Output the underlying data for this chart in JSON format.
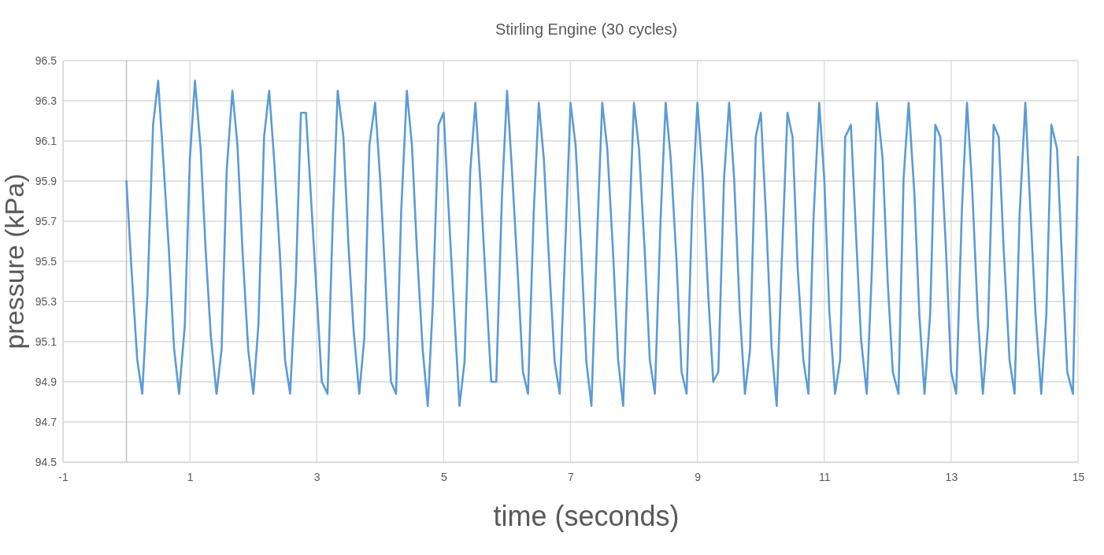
{
  "chart_data": {
    "type": "line",
    "title": "Stirling Engine (30 cycles)",
    "xlabel": "time (seconds)",
    "ylabel": "pressure (kPa)",
    "xlim": [
      -1,
      15
    ],
    "xticks": [
      -1,
      1,
      3,
      5,
      7,
      9,
      11,
      13,
      15
    ],
    "ylim": [
      94.5,
      96.5
    ],
    "yticks": [
      {
        "value": 94.5,
        "label": "94.5"
      },
      {
        "value": 94.7,
        "label": "94.7"
      },
      {
        "value": 94.9,
        "label": "94.9"
      },
      {
        "value": 95.1,
        "label": "95.1"
      },
      {
        "value": 95.3,
        "label": "95.3"
      },
      {
        "value": 95.5,
        "label": "95.5"
      },
      {
        "value": 95.7,
        "label": "95.7"
      },
      {
        "value": 95.9,
        "label": "95.9"
      },
      {
        "value": 96.1,
        "label": "96.1"
      },
      {
        "value": 96.3,
        "label": "96.3"
      },
      {
        "value": 96.5,
        "label": "96.5"
      }
    ],
    "grid": true,
    "marker": "none",
    "line_style": "solid",
    "x": [
      0,
      0.08,
      0.17,
      0.25,
      0.33,
      0.42,
      0.5,
      0.58,
      0.67,
      0.75,
      0.83,
      0.92,
      1,
      1.08,
      1.17,
      1.25,
      1.33,
      1.42,
      1.5,
      1.58,
      1.67,
      1.75,
      1.83,
      1.92,
      2,
      2.08,
      2.17,
      2.25,
      2.33,
      2.42,
      2.5,
      2.58,
      2.67,
      2.75,
      2.83,
      2.92,
      3,
      3.08,
      3.17,
      3.25,
      3.33,
      3.42,
      3.5,
      3.58,
      3.67,
      3.75,
      3.83,
      3.92,
      4,
      4.08,
      4.17,
      4.25,
      4.33,
      4.42,
      4.5,
      4.58,
      4.67,
      4.75,
      4.83,
      4.92,
      5,
      5.08,
      5.17,
      5.25,
      5.33,
      5.42,
      5.5,
      5.58,
      5.67,
      5.75,
      5.83,
      5.92,
      6,
      6.08,
      6.17,
      6.25,
      6.33,
      6.42,
      6.5,
      6.58,
      6.67,
      6.75,
      6.83,
      6.92,
      7,
      7.08,
      7.17,
      7.25,
      7.33,
      7.42,
      7.5,
      7.58,
      7.67,
      7.75,
      7.83,
      7.92,
      8,
      8.08,
      8.17,
      8.25,
      8.33,
      8.42,
      8.5,
      8.58,
      8.67,
      8.75,
      8.83,
      8.92,
      9,
      9.08,
      9.17,
      9.25,
      9.33,
      9.42,
      9.5,
      9.58,
      9.67,
      9.75,
      9.83,
      9.92,
      10,
      10.08,
      10.17,
      10.25,
      10.33,
      10.42,
      10.5,
      10.58,
      10.67,
      10.75,
      10.83,
      10.92,
      11,
      11.08,
      11.17,
      11.25,
      11.33,
      11.42,
      11.5,
      11.58,
      11.67,
      11.75,
      11.83,
      11.92,
      12,
      12.08,
      12.17,
      12.25,
      12.33,
      12.42,
      12.5,
      12.58,
      12.67,
      12.75,
      12.83,
      12.92,
      13,
      13.08,
      13.17,
      13.25,
      13.33,
      13.42,
      13.5,
      13.58,
      13.67,
      13.75,
      13.83,
      13.92,
      14,
      14.08,
      14.17,
      14.25,
      14.33,
      14.42,
      14.5,
      14.58,
      14.67,
      14.75,
      14.83,
      14.92,
      15
    ],
    "series": [
      {
        "color": "#5b9bd5",
        "values": [
          95.9,
          95.46,
          95.01,
          94.84,
          95.33,
          96.18,
          96.4,
          96.01,
          95.55,
          95.07,
          94.84,
          95.18,
          96.01,
          96.4,
          96.06,
          95.55,
          95.13,
          94.84,
          95.06,
          95.95,
          96.35,
          96.08,
          95.55,
          95.06,
          94.84,
          95.18,
          96.12,
          96.35,
          96.0,
          95.53,
          95.01,
          94.84,
          95.4,
          96.24,
          96.24,
          95.76,
          95.33,
          94.9,
          94.84,
          95.68,
          96.35,
          96.12,
          95.58,
          95.16,
          94.84,
          95.12,
          96.08,
          96.29,
          95.91,
          95.42,
          94.9,
          94.84,
          95.74,
          96.35,
          96.08,
          95.55,
          95.06,
          94.78,
          95.29,
          96.18,
          96.24,
          95.75,
          95.23,
          94.78,
          95.0,
          95.95,
          96.29,
          95.89,
          95.36,
          94.9,
          94.9,
          95.83,
          96.35,
          95.94,
          95.43,
          94.95,
          94.84,
          95.74,
          96.29,
          96.01,
          95.45,
          95.0,
          94.84,
          95.6,
          96.29,
          96.08,
          95.55,
          95.0,
          94.78,
          95.63,
          96.29,
          96.06,
          95.55,
          95.01,
          94.78,
          95.63,
          96.29,
          96.06,
          95.55,
          95.01,
          94.84,
          95.71,
          96.29,
          96.01,
          95.51,
          94.95,
          94.84,
          95.79,
          96.29,
          95.94,
          95.34,
          94.9,
          94.95,
          95.91,
          96.29,
          95.91,
          95.24,
          94.84,
          95.06,
          96.12,
          96.24,
          95.74,
          95.07,
          94.78,
          95.5,
          96.24,
          96.12,
          95.47,
          95.01,
          94.84,
          95.71,
          96.29,
          95.91,
          95.25,
          94.84,
          95.01,
          96.12,
          96.18,
          95.64,
          95.11,
          94.84,
          95.45,
          96.29,
          96.01,
          95.4,
          94.95,
          94.84,
          95.91,
          96.29,
          95.84,
          95.23,
          94.84,
          95.24,
          96.18,
          96.12,
          95.55,
          94.95,
          94.84,
          95.76,
          96.29,
          95.88,
          95.23,
          94.84,
          95.17,
          96.18,
          96.12,
          95.55,
          95.01,
          94.84,
          95.74,
          96.29,
          95.75,
          95.24,
          94.84,
          95.23,
          96.18,
          96.06,
          95.49,
          94.95,
          94.84,
          96.02
        ]
      }
    ]
  }
}
